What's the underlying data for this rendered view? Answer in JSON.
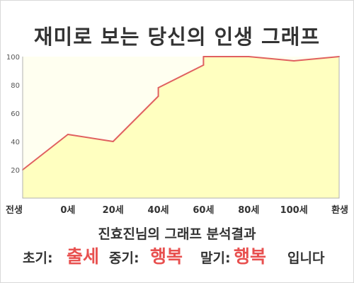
{
  "title": "재미로 보는 당신의 인생 그래프",
  "chart_data": {
    "type": "area",
    "x_ticks": [
      "전생",
      "0세",
      "20세",
      "40세",
      "60세",
      "80세",
      "100세",
      "환생"
    ],
    "y_ticks": [
      "20",
      "40",
      "60",
      "80",
      "100"
    ],
    "ylim": [
      0,
      100
    ],
    "grid": false,
    "series": [
      {
        "points": [
          {
            "x": "전생",
            "y": 20
          },
          {
            "x": "0세",
            "y": 45
          },
          {
            "x": "20세",
            "y": 40
          },
          {
            "x": "30세",
            "y": 72
          },
          {
            "x": "40세",
            "y": 78
          },
          {
            "x": "50세",
            "y": 94
          },
          {
            "x": "60세",
            "y": 100
          },
          {
            "x": "80세",
            "y": 100
          },
          {
            "x": "100세",
            "y": 97
          },
          {
            "x": "환생",
            "y": 100
          }
        ],
        "line_color": "#e06060",
        "fill_color": "#ffffc0"
      }
    ]
  },
  "summary": "진효진님의 그래프 분석결과",
  "verdict": {
    "early_label": "초기:",
    "early_value": "출세",
    "mid_label": "중기:",
    "mid_value": "행복",
    "late_label": "말기:",
    "late_value": "행복",
    "ending": "입니다"
  },
  "colors": {
    "highlight": "#e8504f",
    "text": "#333333"
  }
}
